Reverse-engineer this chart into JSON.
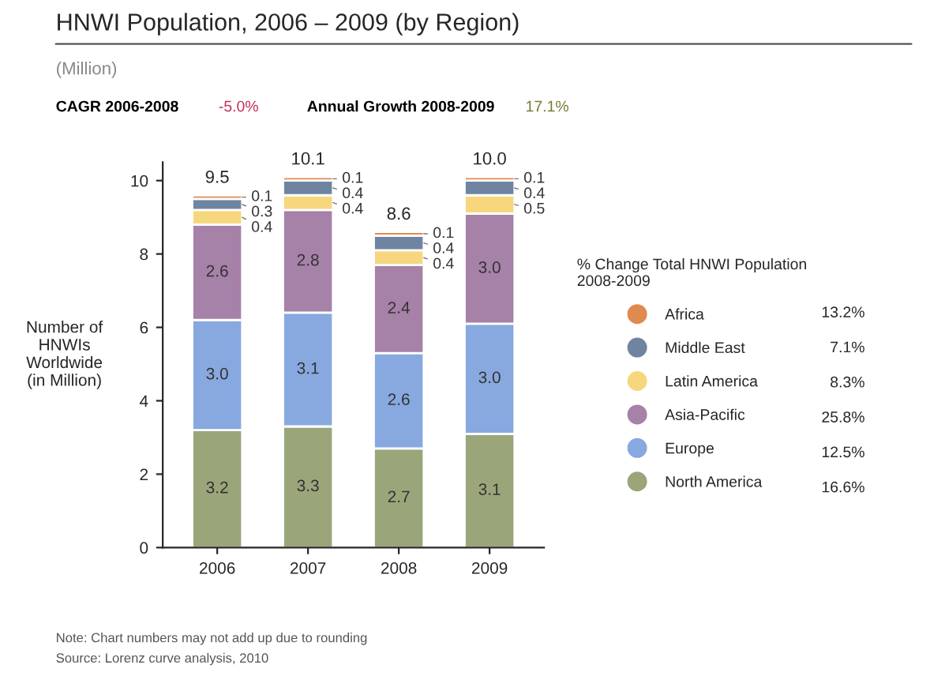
{
  "chart_data": {
    "type": "bar",
    "title": "HNWI Population, 2006 – 2009 (by Region)",
    "subtitle": "(Million)",
    "ylabel": "Number of\nHNWIs\nWorldwide\n(in Million)",
    "legend_title": "% Change Total HNWI Population\n2008-2009",
    "categories": [
      "2006",
      "2007",
      "2008",
      "2009"
    ],
    "stacked": true,
    "totals": [
      "9.5",
      "10.1",
      "8.6",
      "10.0"
    ],
    "series": [
      {
        "name": "North America",
        "color": "#9aa67a",
        "values": [
          3.2,
          3.3,
          2.7,
          3.1
        ],
        "value_labels": [
          "3.2",
          "3.3",
          "2.7",
          "3.1"
        ]
      },
      {
        "name": "Europe",
        "color": "#88a8e0",
        "values": [
          3.0,
          3.1,
          2.6,
          3.0
        ],
        "value_labels": [
          "3.0",
          "3.1",
          "2.6",
          "3.0"
        ]
      },
      {
        "name": "Asia-Pacific",
        "color": "#a681a8",
        "values": [
          2.6,
          2.8,
          2.4,
          3.0
        ],
        "value_labels": [
          "2.6",
          "2.8",
          "2.4",
          "3.0"
        ]
      },
      {
        "name": "Latin America",
        "color": "#f6d77e",
        "values": [
          0.4,
          0.4,
          0.4,
          0.5
        ],
        "value_labels": [
          "0.4",
          "0.4",
          "0.4",
          "0.5"
        ]
      },
      {
        "name": "Middle East",
        "color": "#6f84a0",
        "values": [
          0.3,
          0.4,
          0.4,
          0.4
        ],
        "value_labels": [
          "0.3",
          "0.4",
          "0.4",
          "0.4"
        ]
      },
      {
        "name": "Africa",
        "color": "#e08a50",
        "values": [
          0.1,
          0.1,
          0.1,
          0.1
        ],
        "value_labels": [
          "0.1",
          "0.1",
          "0.1",
          "0.1"
        ]
      }
    ],
    "ylim": [
      0,
      10.5
    ],
    "yticks": [
      0,
      2,
      4,
      6,
      8,
      10
    ],
    "grid": false,
    "legend": "right",
    "marker": "circle",
    "annotations": [
      "CAGR 2006-2008",
      "-5.0%",
      "Annual Growth 2008-2009",
      "17.1%",
      "16.6%",
      "12.5%",
      "25.8%",
      "8.3%",
      "7.1%",
      "13.2%",
      "Note: Chart numbers may not add up due to rounding",
      "Source: Lorenz curve analysis, 2010"
    ]
  }
}
